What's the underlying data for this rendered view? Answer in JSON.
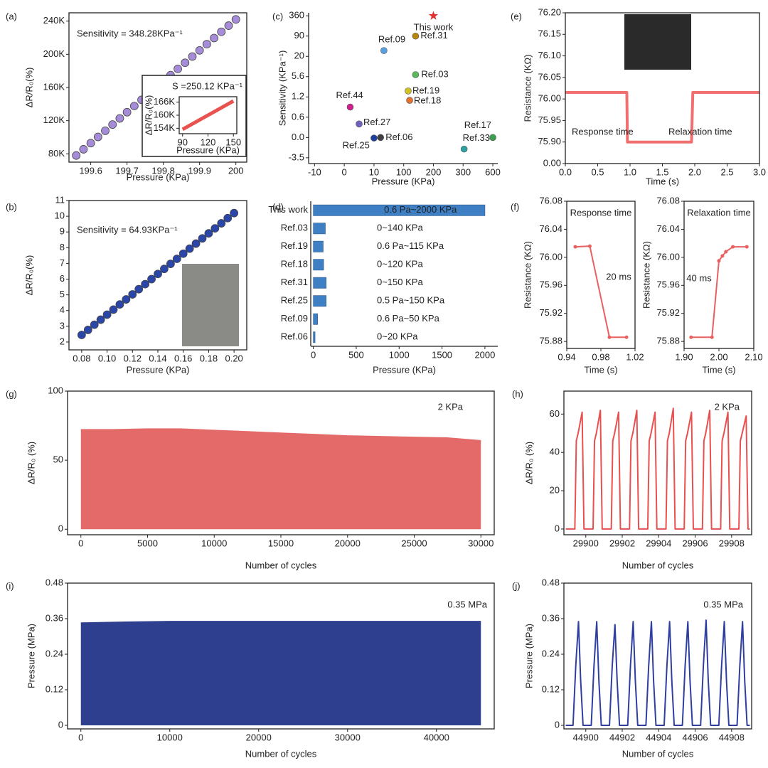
{
  "chart_data": [
    {
      "type": "scatter",
      "panel": "(a)",
      "xlabel": "Pressure (KPa)",
      "ylabel": "ΔR/R₀(%)",
      "annotations": [
        "Sensitivity = 348.28KPa⁻¹"
      ],
      "color": "#a58bd8",
      "x": [
        199.56,
        199.58,
        199.6,
        199.62,
        199.64,
        199.66,
        199.68,
        199.7,
        199.72,
        199.74,
        199.76,
        199.78,
        199.8,
        199.82,
        199.84,
        199.86,
        199.88,
        199.9,
        199.92,
        199.94,
        199.96,
        199.98,
        200
      ],
      "values": [
        78000,
        85500,
        92900,
        100400,
        107800,
        115300,
        122700,
        130200,
        137600,
        145100,
        152500,
        160000,
        167500,
        174900,
        182400,
        189800,
        197300,
        204700,
        212200,
        219600,
        227100,
        234500,
        242000
      ],
      "xlim": [
        199.54,
        200.03
      ],
      "xticks": [
        199.6,
        199.7,
        199.8,
        199.9,
        200
      ],
      "ylim": [
        70000,
        250000
      ],
      "yticks": [
        {
          "value": 80000,
          "label": "80K"
        },
        {
          "value": 120000,
          "label": "120K"
        },
        {
          "value": 160000,
          "label": "160K"
        },
        {
          "value": 200000,
          "label": "200K"
        },
        {
          "value": 240000,
          "label": "240K"
        }
      ]
    },
    {
      "type": "line",
      "xlabel": "Pressure (KPa)",
      "ylabel": "ΔR/R₀(%)",
      "annotations": [
        "S =250.12 KPa⁻¹"
      ],
      "color": "#e8534f",
      "x": [
        90,
        150
      ],
      "values": [
        153500,
        166500
      ],
      "xlim": [
        86,
        154
      ],
      "xticks": [
        90,
        120,
        150
      ],
      "ylim": [
        151500,
        168500
      ],
      "yticks": [
        {
          "value": 154000,
          "label": "154K"
        },
        {
          "value": 160000,
          "label": "160K"
        },
        {
          "value": 166000,
          "label": "166K"
        }
      ]
    },
    {
      "type": "labeled-scatter",
      "panel": "(c)",
      "xlabel": "Pressure (KPa)",
      "ylabel": "Sensitivity (KPa⁻¹)",
      "xscale": "broken",
      "yscale": "broken",
      "points": [
        {
          "label": "This work",
          "x": 200,
          "y": 360,
          "color": "#e03030",
          "label_color": "#e03030",
          "marker": "star"
        },
        {
          "label": "Ref.31",
          "x": 140,
          "y": 90,
          "color": "#b8860b"
        },
        {
          "label": "Ref.09",
          "x": 40,
          "y": 40,
          "color": "#5aa0e0"
        },
        {
          "label": "Ref.03",
          "x": 140,
          "y": 7,
          "color": "#5cb85c"
        },
        {
          "label": "Ref.19",
          "x": 115,
          "y": 2.5,
          "color": "#d4c020"
        },
        {
          "label": "Ref.18",
          "x": 120,
          "y": 1.1,
          "color": "#e8702a"
        },
        {
          "label": "Ref.44",
          "x": 2,
          "y": 0.9,
          "color": "#d02090"
        },
        {
          "label": "Ref.27",
          "x": 5,
          "y": 0.4,
          "color": "#7060c0"
        },
        {
          "label": "Ref.25",
          "x": 10,
          "y": -0.1,
          "color": "#2040a0"
        },
        {
          "label": "Ref.06",
          "x": 30,
          "y": 0,
          "color": "#404040"
        },
        {
          "label": "Ref.33",
          "x": 310,
          "y": -2,
          "color": "#30a0a0"
        },
        {
          "label": "Ref.17",
          "x": 600,
          "y": 0,
          "color": "#3aa050"
        }
      ],
      "xlim": [
        -12,
        650
      ],
      "xticks": [
        -10,
        0,
        10,
        100,
        200,
        300,
        600
      ],
      "ylim": [
        -4.5,
        400
      ],
      "yticks": [
        -3.5,
        {
          "value": 0,
          "label": "0.0"
        },
        0.6,
        1.2,
        5.6,
        20,
        90,
        360
      ]
    },
    {
      "type": "line",
      "panel": "(e)",
      "xlabel": "Time (s)",
      "ylabel": "Resistance (KΩ)",
      "yscale": "broken",
      "annotations": [
        "Response time",
        "Relaxation time"
      ],
      "color": "#f07070",
      "x": [
        0,
        0.95,
        0.96,
        1.95,
        1.97,
        3
      ],
      "values": [
        76.015,
        76.015,
        75.885,
        75.885,
        76.015,
        76.015
      ],
      "xlim": [
        0,
        3
      ],
      "xticks": [
        {
          "value": 0,
          "label": "0.0"
        },
        0.5,
        {
          "value": 1,
          "label": "1.0"
        },
        1.5,
        {
          "value": 2,
          "label": "2.0"
        },
        2.5,
        {
          "value": 3,
          "label": "3.0"
        }
      ],
      "ylim": [
        -0.03,
        76.2
      ],
      "yticks": [
        {
          "value": 0,
          "label": "0.00"
        },
        {
          "value": 75.9,
          "label": "75.90"
        },
        75.95,
        {
          "value": 76,
          "label": "76.00"
        },
        76.05,
        {
          "value": 76.1,
          "label": "76.10"
        },
        76.15,
        {
          "value": 76.2,
          "label": "76.20"
        }
      ]
    },
    {
      "type": "scatter",
      "panel": "(b)",
      "xlabel": "Pressure (KPa)",
      "ylabel": "ΔR/R₀(%)",
      "annotations": [
        "Sensitivity = 64.93KPa⁻¹"
      ],
      "color": "#2a46a8",
      "x": [
        0.08,
        0.085,
        0.09,
        0.095,
        0.1,
        0.105,
        0.11,
        0.115,
        0.12,
        0.125,
        0.13,
        0.135,
        0.14,
        0.145,
        0.15,
        0.155,
        0.16,
        0.165,
        0.17,
        0.175,
        0.18,
        0.185,
        0.19,
        0.195,
        0.2
      ],
      "values": [
        2.45,
        2.77,
        3.1,
        3.42,
        3.74,
        4.06,
        4.39,
        4.71,
        5.03,
        5.36,
        5.68,
        6,
        6.33,
        6.65,
        6.97,
        7.29,
        7.62,
        7.94,
        8.26,
        8.59,
        8.91,
        9.23,
        9.55,
        9.88,
        10.2
      ],
      "xlim": [
        0.07,
        0.21
      ],
      "xticks": [
        0.08,
        {
          "value": 0.1,
          "label": "0.10"
        },
        0.12,
        0.14,
        0.16,
        0.18,
        {
          "value": 0.2,
          "label": "0.20"
        }
      ],
      "ylim": [
        1.5,
        11
      ],
      "yticks": [
        2,
        3,
        4,
        5,
        6,
        7,
        8,
        9,
        10,
        11
      ]
    },
    {
      "type": "hbar",
      "panel": "(d)",
      "xlabel": "Pressure (KPa)",
      "color": "#3f7fc4",
      "categories": [
        "This work",
        "Ref.03",
        "Ref.19",
        "Ref.18",
        "Ref.31",
        "Ref.25",
        "Ref.09",
        "Ref.06"
      ],
      "label_colors": [
        "#e03030",
        "#222222",
        "#222222",
        "#222222",
        "#222222",
        "#222222",
        "#222222",
        "#222222"
      ],
      "values": [
        2000,
        140,
        115,
        120,
        150,
        150,
        50,
        20
      ],
      "value_labels": [
        "0.6 Pa~2000 KPa",
        "0~140 KPa",
        "0.6 Pa~115 KPa",
        "0~120 KPa",
        "0~150 KPa",
        "0.5 Pa~150 KPa",
        "0.6 Pa~50 KPa",
        "0~20 KPa"
      ],
      "xlim": [
        -30,
        2150
      ],
      "xticks": [
        0,
        500,
        1000,
        1500,
        2000
      ]
    },
    {
      "type": "line",
      "panel": "(f)",
      "title": "Response time",
      "xlabel": "Time (s)",
      "ylabel": "Resistance (KΩ)",
      "annotations": [
        "20 ms"
      ],
      "color": "#e86060",
      "markers": true,
      "x": [
        0.95,
        0.967,
        0.99,
        1.01
      ],
      "values": [
        76.015,
        76.016,
        75.886,
        75.886
      ],
      "xlim": [
        0.94,
        1.02
      ],
      "xticks": [
        0.94,
        0.98,
        1.02
      ],
      "ylim": [
        75.87,
        76.08
      ],
      "yticks": [
        75.88,
        75.92,
        75.96,
        {
          "value": 76,
          "label": "76.00"
        },
        76.04,
        76.08
      ]
    },
    {
      "type": "line",
      "title": "Relaxation time",
      "xlabel": "Time (s)",
      "ylabel": "Resistance (KΩ)",
      "annotations": [
        "40 ms"
      ],
      "color": "#e86060",
      "markers": true,
      "x": [
        1.92,
        1.98,
        2,
        2.01,
        2.02,
        2.04,
        2.08
      ],
      "values": [
        75.886,
        75.886,
        75.995,
        76.002,
        76.008,
        76.015,
        76.015
      ],
      "xlim": [
        1.9,
        2.1
      ],
      "xticks": [
        {
          "value": 1.9,
          "label": "1.90"
        },
        {
          "value": 2,
          "label": "2.00"
        },
        {
          "value": 2.1,
          "label": "2.10"
        }
      ],
      "ylim": [
        75.87,
        76.08
      ],
      "yticks": [
        75.88,
        75.92,
        75.96,
        {
          "value": 76,
          "label": "76.00"
        },
        76.04,
        76.08
      ]
    },
    {
      "type": "area",
      "panel": "(g)",
      "xlabel": "Number of cycles",
      "ylabel": "ΔR/R₀ (%)",
      "annotations": [
        "2 KPa"
      ],
      "color": "#e46a6a",
      "x": [
        0,
        2500,
        5000,
        7500,
        10000,
        12500,
        15000,
        17500,
        20000,
        22500,
        25000,
        27500,
        30000
      ],
      "values": [
        72,
        72,
        72.5,
        72.5,
        71.5,
        70.5,
        69.5,
        68.5,
        67.5,
        67,
        66.5,
        66,
        64
      ],
      "xlim": [
        -1000,
        31000
      ],
      "xticks": [
        0,
        5000,
        10000,
        15000,
        20000,
        25000,
        30000
      ],
      "ylim": [
        -4,
        100
      ],
      "yticks": [
        0,
        50,
        100
      ]
    },
    {
      "type": "line",
      "panel": "(h)",
      "xlabel": "Number of cycles",
      "ylabel": "ΔR/R₀ (%)",
      "annotations": [
        "2 KPa"
      ],
      "color": "#e85050",
      "x": [
        29898.9,
        29899.4,
        29899.48,
        29899.58,
        29899.8,
        29899.9,
        29900.4,
        29900.48,
        29900.58,
        29900.8,
        29900.9,
        29901.4,
        29901.48,
        29901.58,
        29901.8,
        29901.9,
        29902.4,
        29902.48,
        29902.58,
        29902.8,
        29902.9,
        29903.4,
        29903.48,
        29903.58,
        29903.8,
        29903.9,
        29904.4,
        29904.48,
        29904.58,
        29904.8,
        29904.9,
        29905.4,
        29905.48,
        29905.58,
        29905.8,
        29905.9,
        29906.4,
        29906.48,
        29906.58,
        29906.8,
        29906.9,
        29907.4,
        29907.48,
        29907.58,
        29907.8,
        29907.9,
        29908.4,
        29908.48,
        29908.58,
        29908.8,
        29908.9,
        29909
      ],
      "values": [
        0,
        0,
        46,
        50,
        61,
        0,
        0,
        46,
        50,
        62,
        0,
        0,
        46,
        50,
        61,
        0,
        0,
        46,
        50,
        62,
        0,
        0,
        46,
        50,
        61,
        0,
        0,
        46,
        50,
        63,
        0,
        0,
        46,
        50,
        61,
        0,
        0,
        46,
        50,
        62,
        0,
        0,
        46,
        50,
        61,
        0,
        0,
        46,
        50,
        59,
        0,
        0
      ],
      "xlim": [
        29898.8,
        29909.1
      ],
      "xticks": [
        29900,
        29902,
        29904,
        29906,
        29908
      ],
      "ylim": [
        -3,
        72
      ],
      "yticks": [
        0,
        20,
        40,
        60
      ]
    },
    {
      "type": "area",
      "panel": "(i)",
      "xlabel": "Number of cycles",
      "ylabel": "Pressure (MPa)",
      "annotations": [
        "0.35 MPa"
      ],
      "color": "#2f3f8f",
      "x": [
        0,
        5000,
        10000,
        15000,
        20000,
        25000,
        30000,
        35000,
        40000,
        45000
      ],
      "values": [
        0.345,
        0.348,
        0.35,
        0.35,
        0.35,
        0.35,
        0.35,
        0.35,
        0.35,
        0.35
      ],
      "xlim": [
        -1500,
        46500
      ],
      "xticks": [
        0,
        10000,
        20000,
        30000,
        40000
      ],
      "ylim": [
        -0.012,
        0.48
      ],
      "yticks": [
        0,
        0.12,
        0.24,
        0.36,
        0.48
      ]
    },
    {
      "type": "line",
      "panel": "(j)",
      "xlabel": "Number of cycles",
      "ylabel": "Pressure (MPa)",
      "annotations": [
        "0.35 MPa"
      ],
      "color": "#2f3fa0",
      "x": [
        44898.9,
        44899.3,
        44899.45,
        44899.6,
        44899.72,
        44899.85,
        44900.3,
        44900.45,
        44900.6,
        44900.72,
        44900.85,
        44901.3,
        44901.45,
        44901.6,
        44901.72,
        44901.85,
        44902.3,
        44902.45,
        44902.6,
        44902.72,
        44902.85,
        44903.3,
        44903.45,
        44903.6,
        44903.72,
        44903.85,
        44904.3,
        44904.45,
        44904.6,
        44904.72,
        44904.85,
        44905.3,
        44905.45,
        44905.6,
        44905.72,
        44905.85,
        44906.3,
        44906.45,
        44906.6,
        44906.72,
        44906.85,
        44907.3,
        44907.45,
        44907.6,
        44907.72,
        44907.85,
        44908.3,
        44908.45,
        44908.6,
        44908.72,
        44908.85,
        44909
      ],
      "values": [
        0,
        0,
        0.2,
        0.35,
        0.15,
        0,
        0,
        0.2,
        0.35,
        0.15,
        0,
        0,
        0.2,
        0.34,
        0.15,
        0,
        0,
        0.2,
        0.35,
        0.15,
        0,
        0,
        0.2,
        0.35,
        0.15,
        0,
        0,
        0.2,
        0.35,
        0.15,
        0,
        0,
        0.2,
        0.35,
        0.15,
        0,
        0,
        0.2,
        0.355,
        0.15,
        0,
        0,
        0.2,
        0.35,
        0.15,
        0,
        0,
        0.2,
        0.35,
        0.15,
        0,
        0
      ],
      "xlim": [
        44898.8,
        44909.1
      ],
      "xticks": [
        44900,
        44902,
        44904,
        44906,
        44908
      ],
      "ylim": [
        -0.012,
        0.48
      ],
      "yticks": [
        0,
        0.12,
        0.24,
        0.36,
        0.48
      ]
    }
  ]
}
